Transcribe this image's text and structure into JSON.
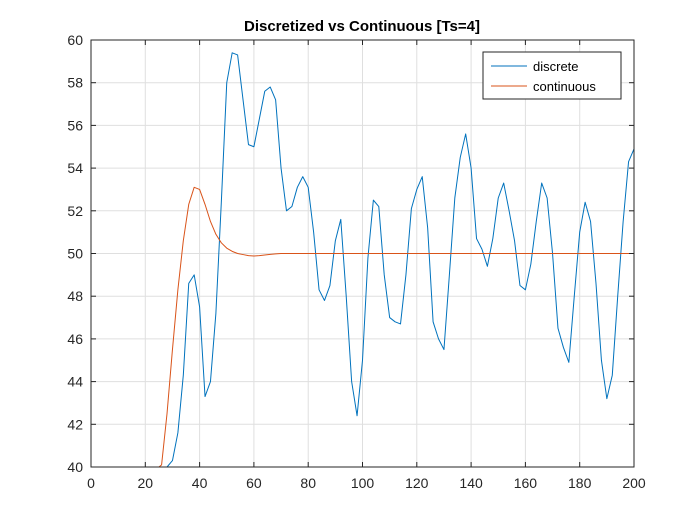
{
  "chart_data": {
    "type": "line",
    "title": "Discretized vs Continuous [Ts=4]",
    "xlabel": "",
    "ylabel": "",
    "xlim": [
      0,
      200
    ],
    "ylim": [
      40,
      60
    ],
    "xticks": [
      0,
      20,
      40,
      60,
      80,
      100,
      120,
      140,
      160,
      180,
      200
    ],
    "yticks": [
      40,
      42,
      44,
      46,
      48,
      50,
      52,
      54,
      56,
      58,
      60
    ],
    "grid": true,
    "legend_position": "top-right",
    "series": [
      {
        "name": "discrete",
        "color": "#0072BD",
        "x": [
          0,
          28,
          30,
          32,
          34,
          36,
          38,
          40,
          42,
          44,
          46,
          48,
          50,
          52,
          54,
          56,
          58,
          60,
          62,
          64,
          66,
          68,
          70,
          72,
          74,
          76,
          78,
          80,
          82,
          84,
          86,
          88,
          90,
          92,
          94,
          96,
          98,
          100,
          102,
          104,
          106,
          108,
          110,
          112,
          114,
          116,
          118,
          120,
          122,
          124,
          126,
          128,
          130,
          132,
          134,
          136,
          138,
          140,
          142,
          144,
          146,
          148,
          150,
          152,
          154,
          156,
          158,
          160,
          162,
          164,
          166,
          168,
          170,
          172,
          174,
          176,
          178,
          180,
          182,
          184,
          186,
          188,
          190,
          192,
          194,
          196,
          198,
          200
        ],
        "y": [
          40,
          40,
          40.3,
          41.6,
          44.3,
          48.6,
          49.0,
          47.5,
          43.3,
          44.0,
          47.2,
          52.4,
          58.0,
          59.4,
          59.3,
          57.2,
          55.1,
          55.0,
          56.3,
          57.6,
          57.8,
          57.2,
          54.0,
          52.0,
          52.2,
          53.1,
          53.6,
          53.1,
          51.0,
          48.3,
          47.8,
          48.5,
          50.6,
          51.6,
          48.0,
          44.0,
          42.4,
          45.0,
          49.8,
          52.5,
          52.2,
          49.0,
          47.0,
          46.8,
          46.7,
          49.0,
          52.1,
          53.0,
          53.6,
          51.2,
          46.8,
          46.0,
          45.5,
          49.0,
          52.6,
          54.5,
          55.6,
          54.0,
          50.7,
          50.2,
          49.4,
          50.7,
          52.6,
          53.3,
          52.0,
          50.6,
          48.5,
          48.3,
          49.5,
          51.5,
          53.3,
          52.6,
          50.0,
          46.5,
          45.6,
          44.9,
          48.0,
          51.0,
          52.4,
          51.5,
          48.6,
          45.0,
          43.2,
          44.3,
          48.0,
          51.5,
          54.3,
          54.9
        ]
      },
      {
        "name": "continuous",
        "color": "#D95319",
        "x": [
          0,
          25,
          26,
          28,
          30,
          32,
          34,
          36,
          38,
          40,
          42,
          44,
          46,
          48,
          50,
          52,
          54,
          56,
          58,
          60,
          62,
          64,
          66,
          68,
          70,
          74,
          80,
          90,
          100,
          120,
          150,
          200
        ],
        "y": [
          40,
          40,
          40.1,
          42.5,
          45.5,
          48.3,
          50.6,
          52.3,
          53.1,
          53.0,
          52.3,
          51.5,
          50.9,
          50.5,
          50.25,
          50.1,
          50.0,
          49.95,
          49.9,
          49.88,
          49.9,
          49.93,
          49.96,
          49.98,
          50.0,
          50.0,
          50.0,
          50.0,
          50.0,
          50.0,
          50.0,
          50.0
        ]
      }
    ]
  }
}
